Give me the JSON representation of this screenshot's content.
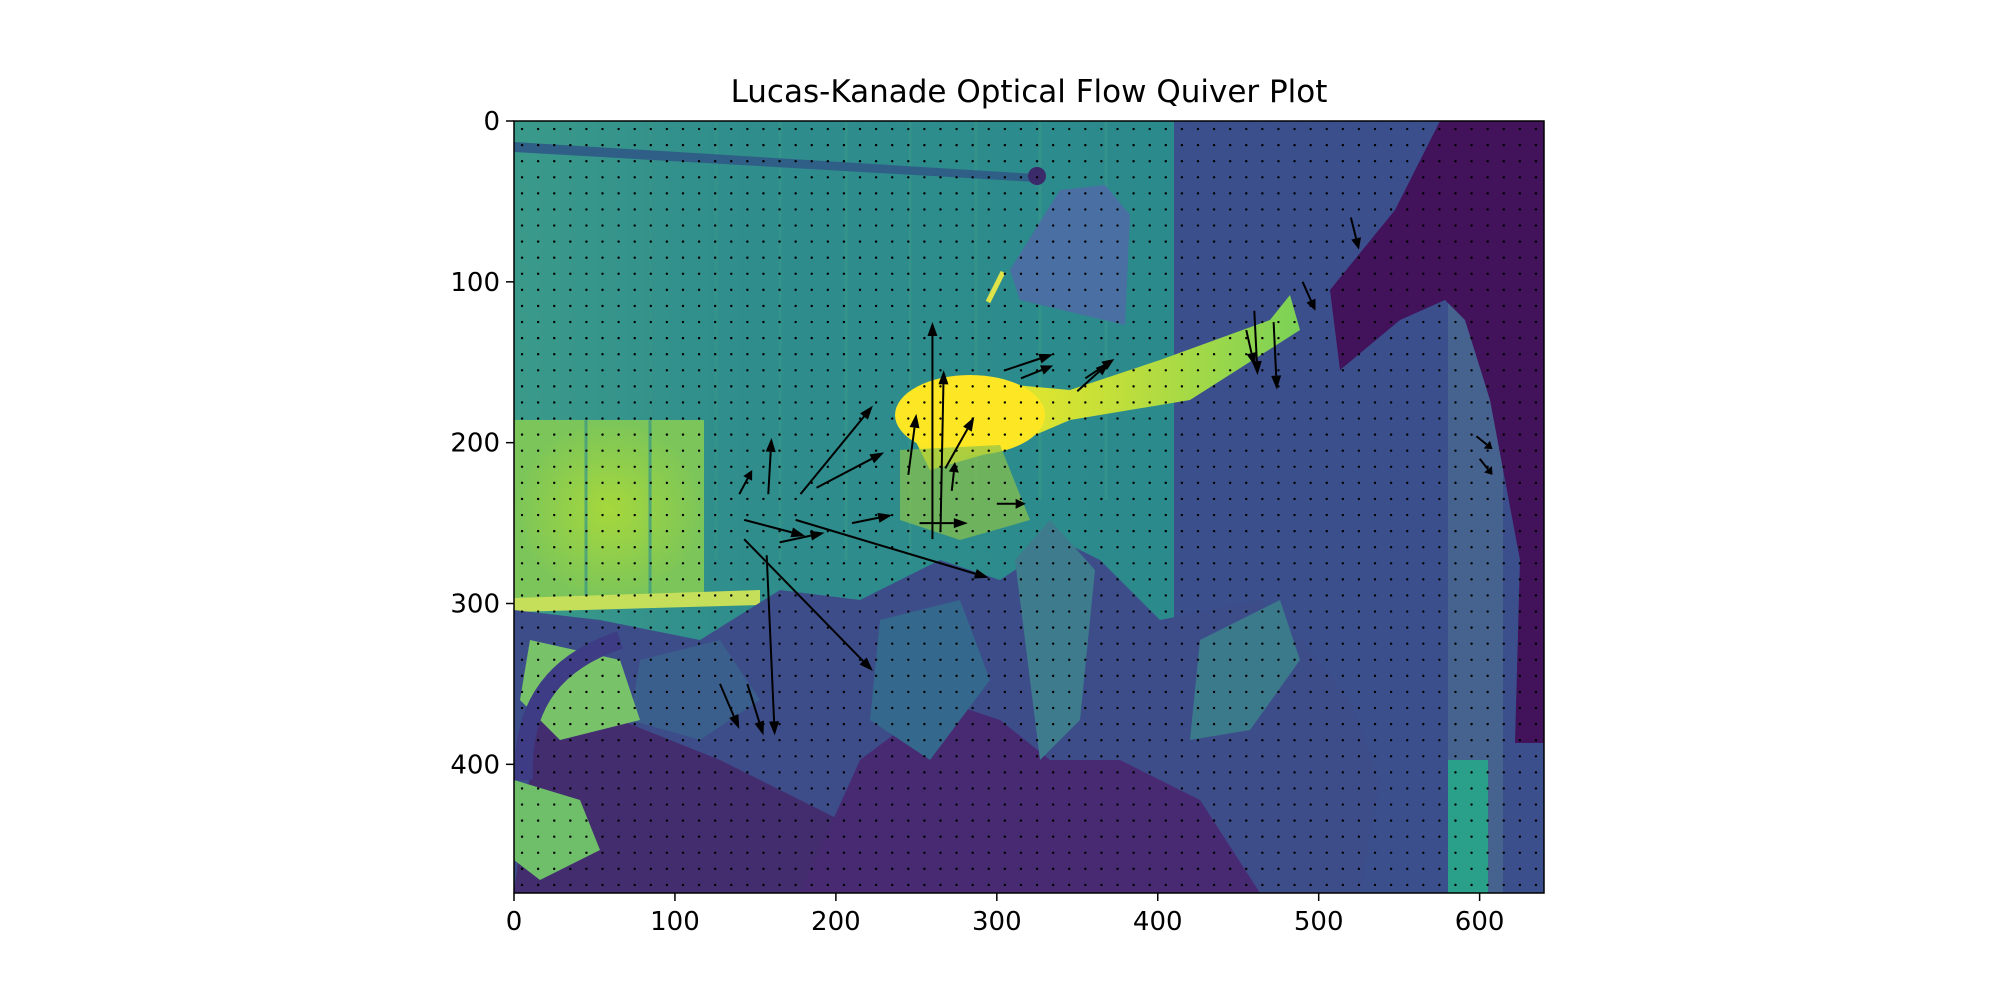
{
  "chart_data": {
    "type": "quiver",
    "title": "Lucas-Kanade Optical Flow Quiver Plot",
    "xlabel": "",
    "ylabel": "",
    "xlim": [
      0,
      640
    ],
    "ylim": [
      480,
      0
    ],
    "y_axis_inverted": true,
    "x_ticks": [
      0,
      100,
      200,
      300,
      400,
      500,
      600
    ],
    "y_ticks": [
      0,
      100,
      200,
      300,
      400
    ],
    "x_tick_labels": [
      "0",
      "100",
      "200",
      "300",
      "400",
      "500",
      "600"
    ],
    "y_tick_labels": [
      "0",
      "100",
      "200",
      "300",
      "400"
    ],
    "background_image": "grayscale photo of a room (lamp, wall, arm reaching, plants) rendered with viridis colormap",
    "colormap": "viridis",
    "arrow_color": "#000000",
    "grid_spacing": 10,
    "vectors": [
      {
        "x": 260,
        "y": 260,
        "u": 0,
        "v": -135
      },
      {
        "x": 265,
        "y": 255,
        "u": 2,
        "v": -100
      },
      {
        "x": 157,
        "y": 270,
        "u": 5,
        "v": 112
      },
      {
        "x": 143,
        "y": 260,
        "u": 80,
        "v": 82
      },
      {
        "x": 175,
        "y": 248,
        "u": 120,
        "v": 36
      },
      {
        "x": 143,
        "y": 248,
        "u": 38,
        "v": 10
      },
      {
        "x": 178,
        "y": 232,
        "u": 45,
        "v": -55
      },
      {
        "x": 188,
        "y": 228,
        "u": 42,
        "v": -22
      },
      {
        "x": 158,
        "y": 232,
        "u": 2,
        "v": -35
      },
      {
        "x": 140,
        "y": 232,
        "u": 8,
        "v": -15
      },
      {
        "x": 128,
        "y": 350,
        "u": 12,
        "v": 28
      },
      {
        "x": 145,
        "y": 350,
        "u": 10,
        "v": 32
      },
      {
        "x": 245,
        "y": 220,
        "u": 5,
        "v": -38
      },
      {
        "x": 272,
        "y": 230,
        "u": 2,
        "v": -18
      },
      {
        "x": 268,
        "y": 216,
        "u": 18,
        "v": -32
      },
      {
        "x": 305,
        "y": 155,
        "u": 30,
        "v": -10
      },
      {
        "x": 315,
        "y": 160,
        "u": 20,
        "v": -8
      },
      {
        "x": 350,
        "y": 168,
        "u": 20,
        "v": -18
      },
      {
        "x": 355,
        "y": 160,
        "u": 18,
        "v": -12
      },
      {
        "x": 252,
        "y": 250,
        "u": 30,
        "v": 0
      },
      {
        "x": 165,
        "y": 262,
        "u": 28,
        "v": -6
      },
      {
        "x": 300,
        "y": 238,
        "u": 18,
        "v": 0
      },
      {
        "x": 210,
        "y": 250,
        "u": 25,
        "v": -5
      },
      {
        "x": 460,
        "y": 118,
        "u": 2,
        "v": 40
      },
      {
        "x": 472,
        "y": 125,
        "u": 2,
        "v": 42
      },
      {
        "x": 455,
        "y": 130,
        "u": 5,
        "v": 22
      },
      {
        "x": 490,
        "y": 100,
        "u": 8,
        "v": 18
      },
      {
        "x": 520,
        "y": 60,
        "u": 5,
        "v": 20
      },
      {
        "x": 598,
        "y": 196,
        "u": 10,
        "v": 8
      },
      {
        "x": 600,
        "y": 210,
        "u": 8,
        "v": 10
      }
    ]
  }
}
